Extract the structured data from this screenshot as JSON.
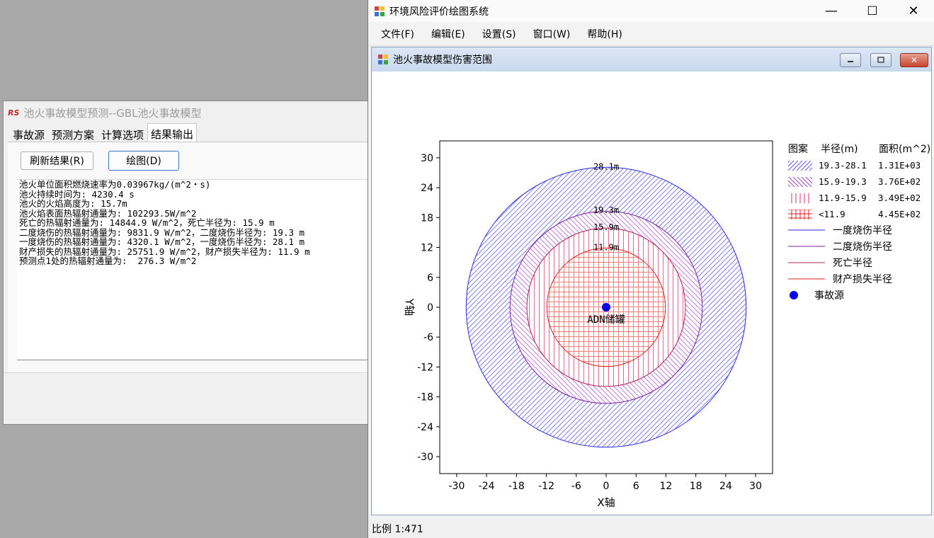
{
  "dialog": {
    "title": "池火事故模型预测--GBL池火事故模型",
    "logo": "RS",
    "tabs": [
      "事故源",
      "预测方案",
      "计算选项",
      "结果输出"
    ],
    "refresh_button": "刷新结果(R)",
    "draw_button": "绘图(D)",
    "result_lines": [
      "池火单位面积燃烧速率为0.03967kg/(m^2・s)",
      "池火持续时间为: 4230.4 s",
      "池火的火焰高度为: 15.7m",
      "池火焰表面热辐射通量为: 102293.5W/m^2",
      "死亡的热辐射通量为: 14844.9 W/m^2，死亡半径为: 15.9 m",
      "二度烧伤的热辐射通量为: 9831.9 W/m^2，二度烧伤半径为: 19.3 m",
      "一度烧伤的热辐射通量为: 4320.1 W/m^2，一度烧伤半径为: 28.1 m",
      "财产损失的热辐射通量为: 25751.9 W/m^2，财产损失半径为: 11.9 m",
      "预测点1处的热辐射通量为:  276.3 W/m^2"
    ]
  },
  "main": {
    "title": "环境风险评价绘图系统",
    "window_controls": [
      "—",
      "☐",
      "✕"
    ],
    "menu": [
      "文件(F)",
      "编辑(E)",
      "设置(S)",
      "窗口(W)",
      "帮助(H)"
    ],
    "child_title": "池火事故模型伤害范围",
    "status": "比例 1:471"
  },
  "chart_data": {
    "type": "scatter",
    "xlabel": "X轴",
    "ylabel": "Y轴",
    "xlim": [
      -33.4,
      33.4
    ],
    "ylim": [
      -33.4,
      33.4
    ],
    "xticks": [
      -30,
      -24,
      -18,
      -12,
      -6,
      0,
      6,
      12,
      18,
      24,
      30
    ],
    "yticks": [
      30,
      24,
      18,
      12,
      6,
      0,
      -6,
      -12,
      -18,
      -24,
      -30
    ],
    "circles": [
      {
        "radius": 28.1,
        "label": "28.1m",
        "color": "#2a2ae0",
        "hatch": "diag-fwd",
        "hatch_color": "#8080ee"
      },
      {
        "radius": 19.3,
        "label": "19.3m",
        "color": "#7b1fa2",
        "hatch": "diag-back",
        "hatch_color": "#c080d8"
      },
      {
        "radius": 15.9,
        "label": "15.9m",
        "color": "#b0205a",
        "hatch": "vertical",
        "hatch_color": "#e06a90"
      },
      {
        "radius": 11.9,
        "label": "11.9m",
        "color": "#e02020",
        "hatch": "grid",
        "hatch_color": "#f08080"
      }
    ],
    "source": {
      "x": 0,
      "y": 0,
      "label": "ADN储罐",
      "color": "#0000ee"
    },
    "legend": {
      "headers": [
        "图案",
        "半径(m)",
        "面积(m^2)"
      ],
      "area_rows": [
        {
          "range": "19.3-28.1",
          "area": "1.31E+03",
          "hatch": "diag-fwd",
          "color": "#5a5ae8"
        },
        {
          "range": "15.9-19.3",
          "area": "3.76E+02",
          "hatch": "diag-back",
          "color": "#9a4ac0"
        },
        {
          "range": "11.9-15.9",
          "area": "3.49E+02",
          "hatch": "vertical",
          "color": "#d0306a"
        },
        {
          "range": "<11.9",
          "area": "4.45E+02",
          "hatch": "grid",
          "color": "#e02020"
        }
      ],
      "line_rows": [
        {
          "label": "一度烧伤半径",
          "color": "#2a2ae0"
        },
        {
          "label": "二度烧伤半径",
          "color": "#7b1fa2"
        },
        {
          "label": "死亡半径",
          "color": "#b0205a"
        },
        {
          "label": "财产损失半径",
          "color": "#e02020"
        }
      ],
      "source_label": "事故源",
      "placement": "right"
    }
  }
}
